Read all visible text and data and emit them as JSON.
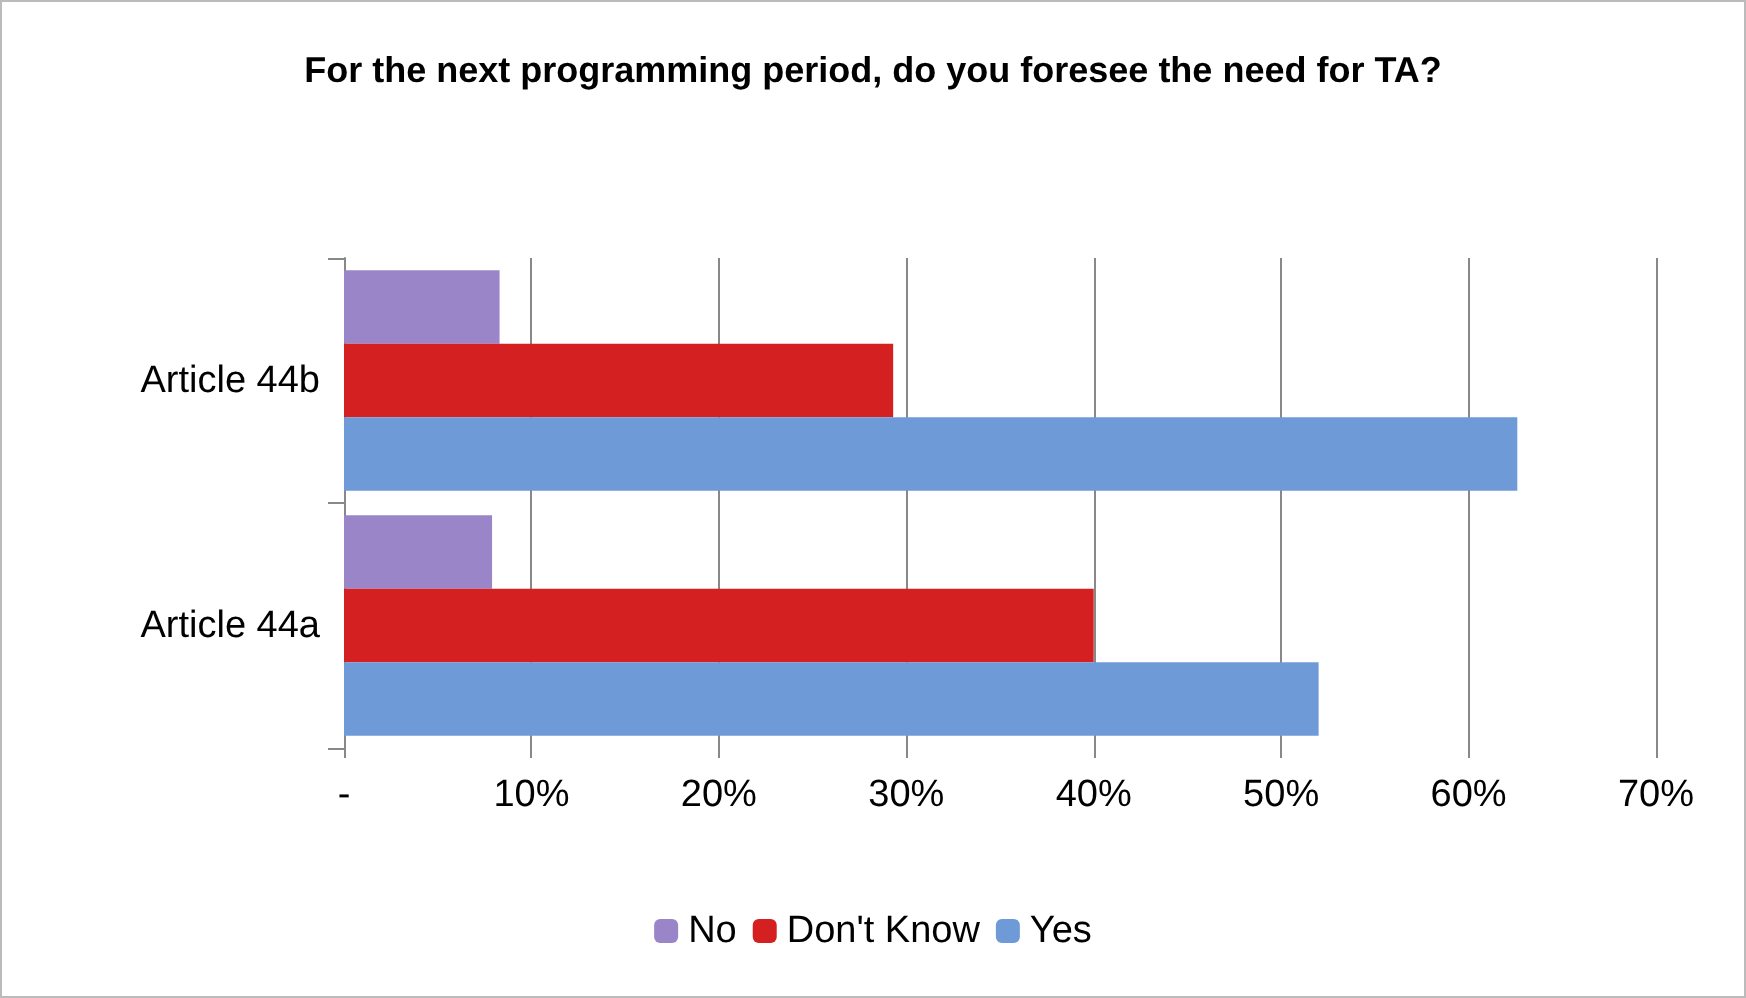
{
  "chart_data": {
    "type": "bar",
    "orientation": "horizontal",
    "title": "For the next programming period, do you foresee the need for TA?",
    "categories": [
      "Article 44b",
      "Article 44a"
    ],
    "series": [
      {
        "name": "No",
        "color": "#9b85c9",
        "values": [
          8.3,
          7.9
        ]
      },
      {
        "name": "Don't Know",
        "color": "#d42020",
        "values": [
          29.3,
          40.0
        ]
      },
      {
        "name": "Yes",
        "color": "#6f9ad8",
        "values": [
          62.6,
          52.0
        ]
      }
    ],
    "xlim": [
      0,
      70
    ],
    "xticks": [
      {
        "value": 0,
        "label": "-"
      },
      {
        "value": 10,
        "label": "10%"
      },
      {
        "value": 20,
        "label": "20%"
      },
      {
        "value": 30,
        "label": "30%"
      },
      {
        "value": 40,
        "label": "40%"
      },
      {
        "value": 50,
        "label": "50%"
      },
      {
        "value": 60,
        "label": "60%"
      },
      {
        "value": 70,
        "label": "70%"
      }
    ],
    "grid": "x",
    "legend": "bottom"
  }
}
